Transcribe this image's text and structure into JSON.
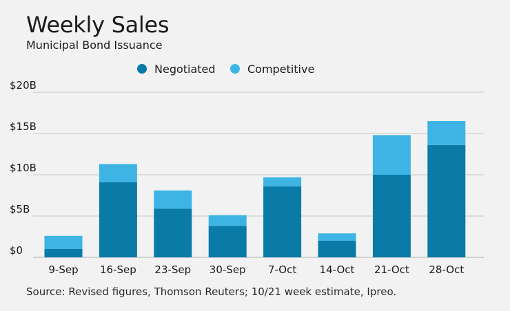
{
  "header": {
    "title": "Weekly Sales",
    "subtitle": "Municipal Bond Issuance"
  },
  "footer": {
    "source": "Source: Revised figures, Thomson Reuters; 10/21 week estimate, Ipreo."
  },
  "colors": {
    "negotiated": "#0a7aa6",
    "competitive": "#3db4e4",
    "grid": "#c8cbcc",
    "background": "#f1f2f1"
  },
  "chart_data": {
    "type": "bar",
    "stacked": true,
    "title": "Weekly Sales",
    "subtitle": "Municipal Bond Issuance",
    "xlabel": "",
    "ylabel": "",
    "ylim": [
      0,
      20
    ],
    "yticks": [
      0,
      5,
      10,
      15,
      20
    ],
    "ytick_labels": [
      "$0",
      "$5B",
      "$10B",
      "$15B",
      "$20B"
    ],
    "legend_position": "top-center",
    "grid": true,
    "categories": [
      "9-Sep",
      "16-Sep",
      "23-Sep",
      "30-Sep",
      "7-Oct",
      "14-Oct",
      "21-Oct",
      "28-Oct"
    ],
    "series": [
      {
        "name": "Negotiated",
        "values": [
          1.0,
          9.1,
          5.9,
          3.8,
          8.6,
          2.0,
          10.0,
          13.6
        ]
      },
      {
        "name": "Competitive",
        "values": [
          1.6,
          2.2,
          2.2,
          1.3,
          1.1,
          0.9,
          4.8,
          2.9
        ]
      }
    ]
  }
}
